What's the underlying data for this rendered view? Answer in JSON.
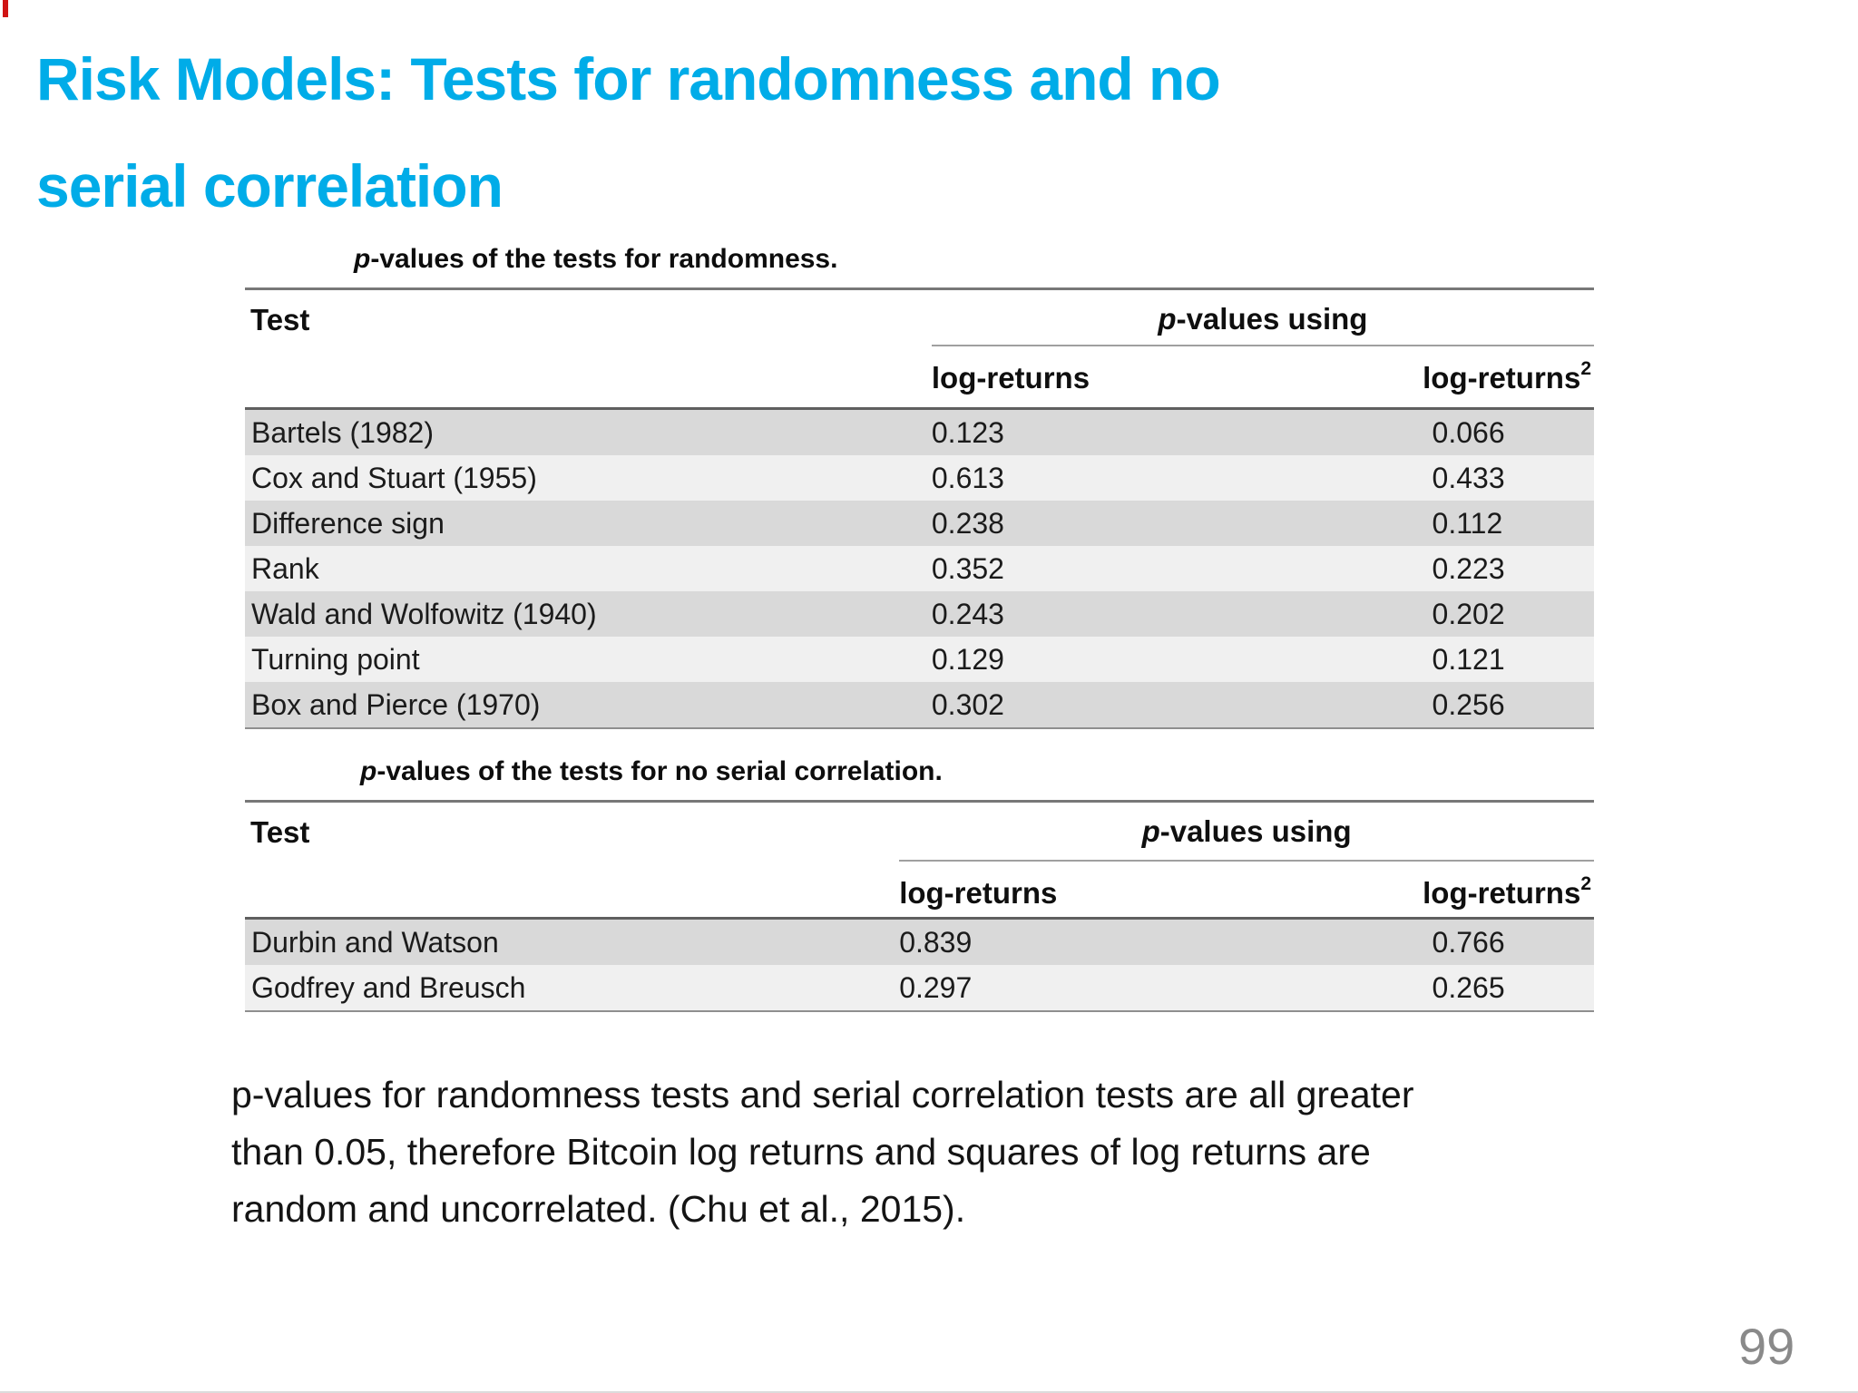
{
  "slide": {
    "accent_color": "#00ACE8",
    "title": {
      "line1": "Risk Models: Tests for randomness and no",
      "line2": "serial correlation"
    },
    "note_lines": [
      "p-values for randomness tests and serial correlation tests are all greater",
      "than 0.05, therefore Bitcoin log returns and squares of log returns are",
      "random and uncorrelated. (Chu et al., 2015)."
    ],
    "page_number": "99"
  },
  "table_randomness": {
    "caption": {
      "lead": "p",
      "rest": "-values of the tests for randomness."
    },
    "headers": {
      "test": "Test",
      "span_lead": "p",
      "span_rest": "-values using",
      "col2": "log-returns",
      "col3_base": "log-returns",
      "col3_sup": "2"
    },
    "rows": [
      {
        "test": "Bartels (1982)",
        "log_returns": "0.123",
        "log_returns_sq": "0.066"
      },
      {
        "test": "Cox and Stuart (1955)",
        "log_returns": "0.613",
        "log_returns_sq": "0.433"
      },
      {
        "test": "Difference sign",
        "log_returns": "0.238",
        "log_returns_sq": "0.112"
      },
      {
        "test": "Rank",
        "log_returns": "0.352",
        "log_returns_sq": "0.223"
      },
      {
        "test": "Wald and Wolfowitz (1940)",
        "log_returns": "0.243",
        "log_returns_sq": "0.202"
      },
      {
        "test": "Turning point",
        "log_returns": "0.129",
        "log_returns_sq": "0.121"
      },
      {
        "test": "Box and Pierce (1970)",
        "log_returns": "0.302",
        "log_returns_sq": "0.256"
      }
    ]
  },
  "table_serial": {
    "caption": {
      "lead": "p",
      "rest": "-values of the tests for no serial correlation."
    },
    "headers": {
      "test": "Test",
      "span_lead": "p",
      "span_rest": "-values using",
      "col2": "log-returns",
      "col3_base": "log-returns",
      "col3_sup": "2"
    },
    "rows": [
      {
        "test": "Durbin and Watson",
        "log_returns": "0.839",
        "log_returns_sq": "0.766"
      },
      {
        "test": "Godfrey and Breusch",
        "log_returns": "0.297",
        "log_returns_sq": "0.265"
      }
    ]
  }
}
